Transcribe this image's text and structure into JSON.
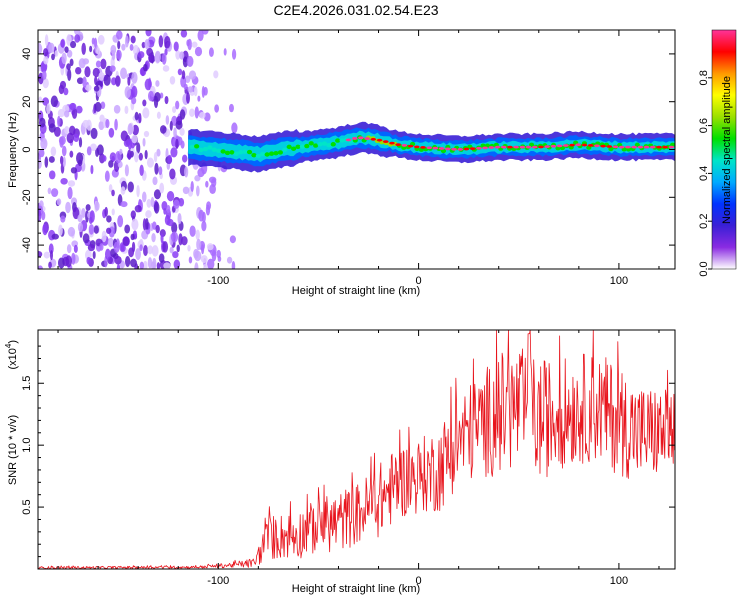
{
  "title": "C2E4.2026.031.02.54.E23",
  "colors": {
    "snr_line": "#e8141c",
    "axis": "#000000"
  },
  "chart_data": [
    {
      "type": "heatmap",
      "name": "spectrogram",
      "xlabel": "Height of straight line (km)",
      "ylabel": "Frequency (Hz)",
      "xlim": [
        -190,
        128
      ],
      "ylim": [
        -50,
        50
      ],
      "x_ticks": [
        -100,
        0,
        100
      ],
      "x_tick_labels": [
        "-100",
        "0",
        "100"
      ],
      "y_ticks": [
        -40,
        -20,
        0,
        20,
        40
      ],
      "y_tick_labels": [
        "-40",
        "-20",
        "0",
        "20",
        "40"
      ],
      "noise_region_x": [
        -190,
        -95
      ],
      "signal_start_x": -115,
      "signal_track": {
        "x": [
          -115,
          -100,
          -80,
          -60,
          -40,
          -30,
          -20,
          -10,
          0,
          20,
          40,
          60,
          80,
          100,
          128
        ],
        "y": [
          1,
          0,
          -2,
          1,
          3,
          5,
          4,
          2,
          1,
          0,
          1,
          1,
          2,
          1,
          1
        ]
      },
      "colorbar": {
        "label": "Normalized spectral amplitude",
        "range": [
          0,
          1
        ],
        "ticks": [
          0.0,
          0.2,
          0.4,
          0.6,
          0.8
        ],
        "tick_labels": [
          "0.0",
          "0.2",
          "0.4",
          "0.6",
          "0.8"
        ],
        "colormap": [
          "#ffffff",
          "#8a2be2",
          "#3a1fd6",
          "#0033ff",
          "#00aaff",
          "#00e5c8",
          "#00e000",
          "#9be000",
          "#ffff00",
          "#ff9900",
          "#ff0000",
          "#ff3399"
        ]
      }
    },
    {
      "type": "line",
      "name": "snr",
      "xlabel": "Height of straight line (km)",
      "ylabel": "SNR (10 * v/v)",
      "y_scale_label": "(x10",
      "y_scale_exp": "4",
      "xlim": [
        -190,
        128
      ],
      "ylim": [
        0,
        1.93
      ],
      "x_ticks": [
        -100,
        0,
        100
      ],
      "x_tick_labels": [
        "-100",
        "0",
        "100"
      ],
      "y_ticks": [
        0.5,
        1.0,
        1.5
      ],
      "y_tick_labels": [
        "0.5",
        "1.0",
        "1.5"
      ],
      "envelope": {
        "x": [
          -190,
          -110,
          -95,
          -82,
          -75,
          -60,
          -50,
          -40,
          -30,
          -20,
          -10,
          0,
          10,
          20,
          30,
          40,
          50,
          60,
          70,
          80,
          90,
          100,
          110,
          128
        ],
        "mean": [
          0.01,
          0.015,
          0.03,
          0.05,
          0.25,
          0.28,
          0.35,
          0.38,
          0.45,
          0.55,
          0.7,
          0.75,
          0.8,
          1.05,
          1.15,
          1.25,
          1.3,
          1.2,
          1.25,
          1.3,
          1.3,
          1.2,
          1.1,
          1.1
        ],
        "amp": [
          0.01,
          0.01,
          0.02,
          0.04,
          0.18,
          0.2,
          0.22,
          0.25,
          0.25,
          0.3,
          0.3,
          0.3,
          0.35,
          0.38,
          0.42,
          0.5,
          0.5,
          0.5,
          0.45,
          0.45,
          0.45,
          0.45,
          0.4,
          0.35
        ]
      },
      "peak_x": 55,
      "peak_value": 1.9
    }
  ]
}
